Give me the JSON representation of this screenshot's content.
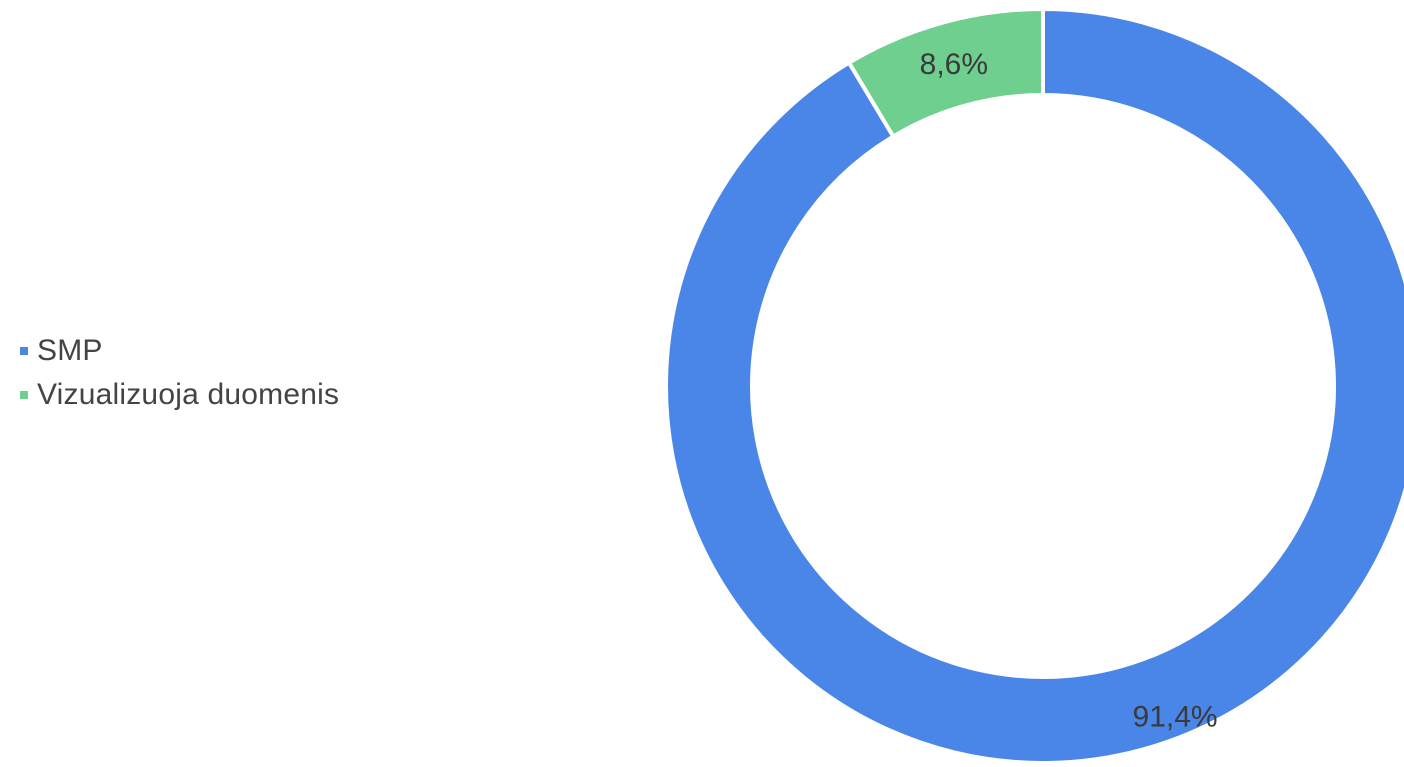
{
  "chart_data": {
    "type": "pie",
    "variant": "donut",
    "legend_position": "left",
    "slices": [
      {
        "name": "SMP",
        "value": 91.4,
        "label": "91,4%",
        "color": "#4a86e8"
      },
      {
        "name": "Vizualizuoja duomenis",
        "value": 8.6,
        "label": "8,6%",
        "color": "#6fcf8f"
      }
    ]
  }
}
